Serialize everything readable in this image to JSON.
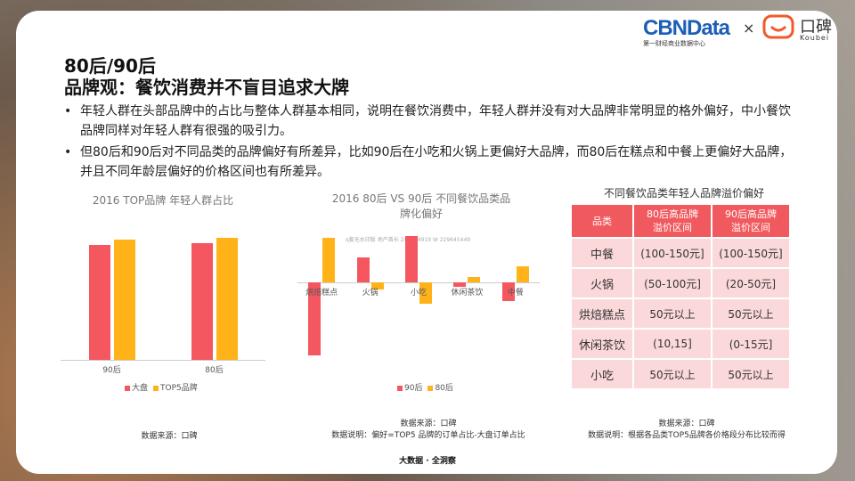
{
  "brand": {
    "cbn": "CBNData",
    "cbn_sub": "第一财经商业数据中心",
    "times": "×",
    "koubei": "口碑",
    "koubei_en": "Koubei"
  },
  "title": {
    "line1": "80后/90后",
    "line2": "品牌观：餐饮消费并不盲目追求大牌"
  },
  "bullets": [
    {
      "marker": "•",
      "text": "年轻人群在头部品牌中的占比与整体人群基本相同，说明在餐饮消费中，年轻人群并没有对大品牌非常明显的格外偏好，中小餐饮品牌同样对年轻人群有很强的吸引力。"
    },
    {
      "marker": "•",
      "text": "但80后和90后对不同品类的品牌偏好有所差异，比如90后在小吃和火锅上更偏好大品牌，而80后在糕点和中餐上更偏好大品牌，并且不同年龄层偏好的价格区间也有所差异。"
    }
  ],
  "chart_data": [
    {
      "type": "bar",
      "title": "2016 TOP品牌 年轻人群占比",
      "categories": [
        "90后",
        "80后"
      ],
      "series": [
        {
          "name": "大盘",
          "values": [
            0.63,
            0.64
          ]
        },
        {
          "name": "TOP5品牌",
          "values": [
            0.66,
            0.67
          ]
        }
      ],
      "ylim": [
        0,
        0.8
      ],
      "colors": [
        "#f4575f",
        "#ffb319"
      ],
      "legend": "bottom"
    },
    {
      "type": "bar",
      "title": "2016 80后 VS 90后 不同餐饮品类品牌化偏好",
      "categories": [
        "烘焙糕点",
        "火锅",
        "小吃",
        "休闲茶饮",
        "中餐"
      ],
      "series": [
        {
          "name": "90后",
          "values": [
            -0.62,
            0.21,
            0.39,
            -0.04,
            -0.16
          ]
        },
        {
          "name": "80后",
          "values": [
            0.37,
            -0.06,
            -0.18,
            0.04,
            0.13
          ]
        }
      ],
      "ylim": [
        -0.7,
        0.5
      ],
      "colors": [
        "#f4575f",
        "#ffb319"
      ],
      "legend": "bottom"
    }
  ],
  "watermark": "q套无水印版 地产酋长 249764919 W 229645449",
  "sources": [
    {
      "line1": "数据来源：口碑",
      "line2": ""
    },
    {
      "line1": "数据来源：口碑",
      "line2": "数据说明：偏好=TOP5 品牌的订单占比-大盘订单占比"
    },
    {
      "line1": "数据来源：口碑",
      "line2": "数据说明：根据各品类TOP5品牌各价格段分布比较而得"
    }
  ],
  "table": {
    "title": "不同餐饮品类年轻人品牌溢价偏好",
    "headers": [
      "品类",
      "80后高品牌\n溢价区间",
      "90后高品牌\n溢价区间"
    ],
    "rows": [
      [
        "中餐",
        "(100-150元]",
        "(100-150元]"
      ],
      [
        "火锅",
        "(50-100元]",
        "(20-50元]"
      ],
      [
        "烘焙糕点",
        "50元以上",
        "50元以上"
      ],
      [
        "休闲茶饮",
        "(10,15]",
        "(0-15元]"
      ],
      [
        "小吃",
        "50元以上",
        "50元以上"
      ]
    ]
  },
  "footer": "大数据 · 全洞察"
}
